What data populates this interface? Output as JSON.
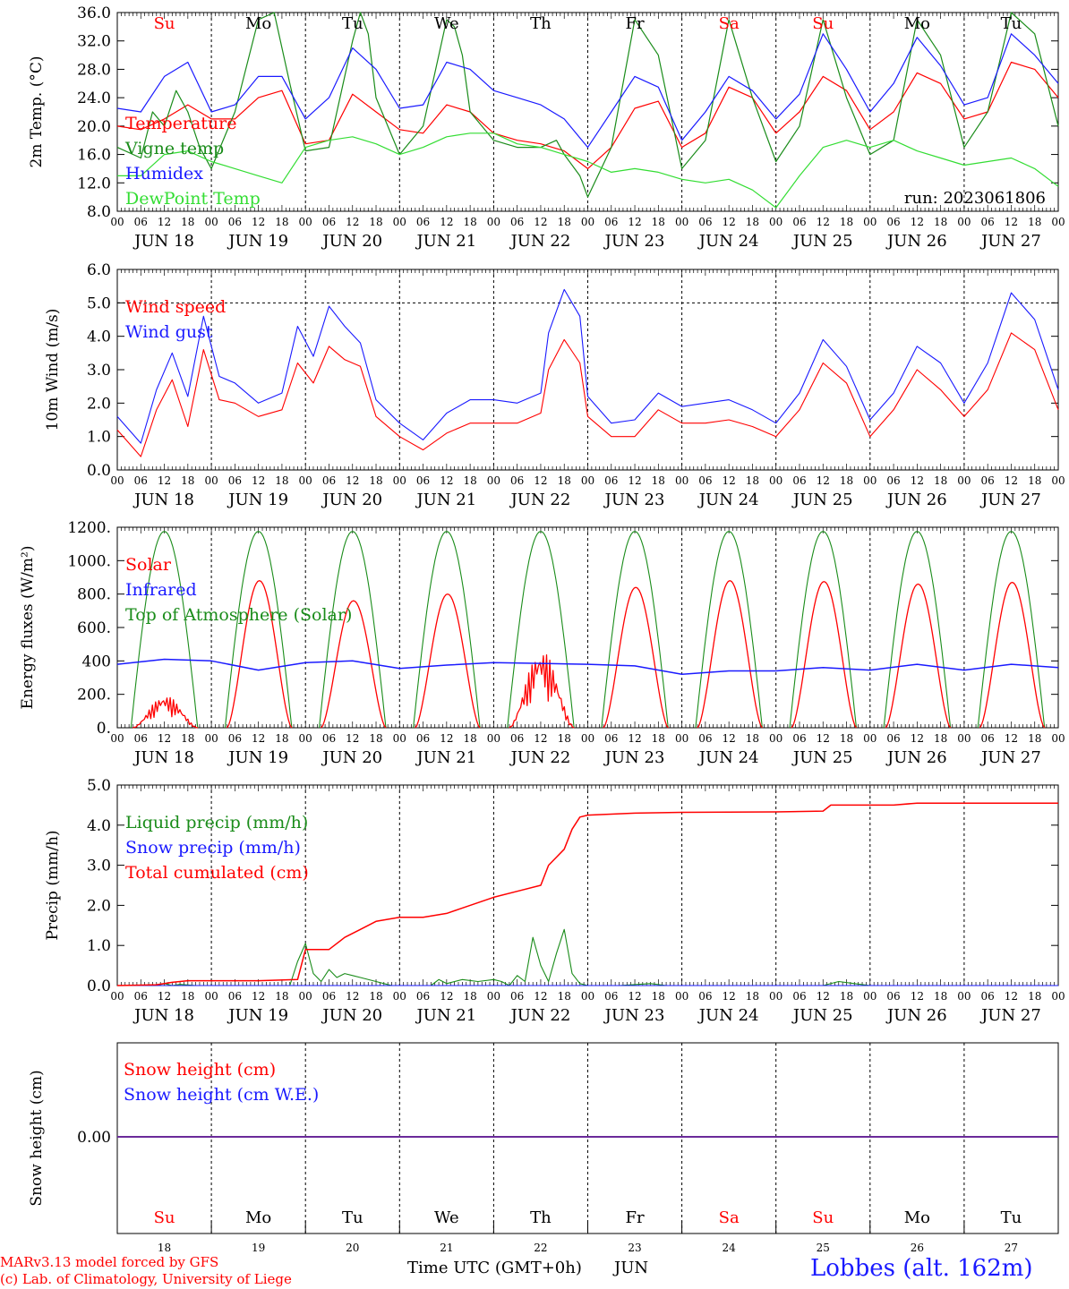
{
  "meta": {
    "run": "run: 2023061806",
    "footer_model": "MARv3.13 model forced by GFS",
    "footer_lab": "(c) Lab. of Climatology, University of Liege",
    "footer_xaxis": "Time UTC (GMT+0h)",
    "footer_month": "JUN",
    "station": "Lobbes (alt. 162m)"
  },
  "colors": {
    "red": "#ff0000",
    "green": "#1a8c1a",
    "blue": "#1a1aff",
    "lightgreen": "#33dd33",
    "purple": "#6a2a9a",
    "weekend": "#ff0000",
    "weekday": "#000000"
  },
  "days": [
    {
      "date": "JUN 18",
      "num": "18",
      "abbr": "Su",
      "weekend": true
    },
    {
      "date": "JUN 19",
      "num": "19",
      "abbr": "Mo",
      "weekend": false
    },
    {
      "date": "JUN 20",
      "num": "20",
      "abbr": "Tu",
      "weekend": false
    },
    {
      "date": "JUN 21",
      "num": "21",
      "abbr": "We",
      "weekend": false
    },
    {
      "date": "JUN 22",
      "num": "22",
      "abbr": "Th",
      "weekend": false
    },
    {
      "date": "JUN 23",
      "num": "23",
      "abbr": "Fr",
      "weekend": false
    },
    {
      "date": "JUN 24",
      "num": "24",
      "abbr": "Sa",
      "weekend": true
    },
    {
      "date": "JUN 25",
      "num": "25",
      "abbr": "Su",
      "weekend": true
    },
    {
      "date": "JUN 26",
      "num": "26",
      "abbr": "Mo",
      "weekend": false
    },
    {
      "date": "JUN 27",
      "num": "27",
      "abbr": "Tu",
      "weekend": false
    }
  ],
  "hour_ticks": [
    "00",
    "06",
    "12",
    "18"
  ],
  "hour_end": "00",
  "chart_data": [
    {
      "type": "line",
      "id": "temp",
      "ylabel": "2m Temp. (°C)",
      "ylim": [
        8,
        36
      ],
      "yticks": [
        "8.0",
        "12.0",
        "16.0",
        "20.0",
        "24.0",
        "28.0",
        "32.0",
        "36.0"
      ],
      "x_unit": "hours since JUN 18 00 UTC",
      "series": [
        {
          "name": "Temperature",
          "color": "red",
          "x": [
            0,
            6,
            12,
            18,
            24,
            30,
            36,
            42,
            48,
            54,
            60,
            66,
            72,
            78,
            84,
            90,
            96,
            102,
            108,
            114,
            120,
            126,
            132,
            138,
            144,
            150,
            156,
            162,
            168,
            174,
            180,
            186,
            192,
            198,
            204,
            210,
            216,
            222,
            228,
            234,
            240
          ],
          "y": [
            20,
            19.5,
            21,
            23,
            21,
            21,
            24,
            25,
            17.5,
            18,
            24.5,
            22,
            19.5,
            19,
            23,
            22,
            19,
            18,
            17.5,
            16.5,
            14,
            17,
            22.5,
            23.5,
            17,
            19,
            25.5,
            24,
            19,
            22,
            27,
            25,
            19.5,
            22,
            27.5,
            26,
            21,
            22,
            29,
            28,
            24
          ]
        },
        {
          "name": "Vigne temp",
          "color": "green",
          "x": [
            0,
            6,
            9,
            12,
            15,
            18,
            21,
            24,
            30,
            36,
            40,
            44,
            48,
            54,
            60,
            62,
            64,
            66,
            72,
            78,
            84,
            86,
            88,
            90,
            96,
            102,
            108,
            112,
            114,
            118,
            120,
            126,
            132,
            138,
            144,
            150,
            156,
            162,
            168,
            174,
            180,
            186,
            192,
            198,
            204,
            210,
            216,
            222,
            228,
            234,
            240
          ],
          "y": [
            17,
            15.5,
            22,
            20,
            25,
            22,
            17,
            14,
            22,
            35,
            36,
            26,
            16.5,
            17,
            32,
            36,
            33,
            24,
            16,
            20,
            35,
            34,
            30,
            22,
            18,
            17,
            17,
            18,
            16,
            13,
            10,
            17,
            35,
            30,
            14,
            18,
            35,
            24,
            15,
            20,
            35,
            24,
            16,
            18,
            35,
            30,
            17,
            22,
            36,
            33,
            20
          ]
        },
        {
          "name": "Humidex",
          "color": "blue",
          "x": [
            0,
            6,
            12,
            18,
            24,
            30,
            36,
            42,
            48,
            54,
            60,
            66,
            72,
            78,
            84,
            90,
            96,
            102,
            108,
            114,
            120,
            126,
            132,
            138,
            144,
            150,
            156,
            162,
            168,
            174,
            180,
            186,
            192,
            198,
            204,
            210,
            216,
            222,
            228,
            234,
            240
          ],
          "y": [
            22.5,
            22,
            27,
            29,
            22,
            23,
            27,
            27,
            21,
            24,
            31,
            28,
            22.5,
            23,
            29,
            28,
            25,
            24,
            23,
            21,
            17,
            22,
            27,
            25.5,
            18,
            22,
            27,
            25,
            21,
            24.5,
            33,
            28,
            22,
            26,
            32.5,
            28.5,
            23,
            24,
            33,
            30,
            26
          ]
        },
        {
          "name": "DewPoint Temp",
          "color": "lightgreen",
          "x": [
            0,
            6,
            12,
            18,
            24,
            30,
            36,
            42,
            48,
            54,
            60,
            66,
            72,
            78,
            84,
            90,
            96,
            102,
            108,
            114,
            120,
            126,
            132,
            138,
            144,
            150,
            156,
            162,
            168,
            174,
            180,
            186,
            192,
            198,
            204,
            210,
            216,
            222,
            228,
            234,
            240
          ],
          "y": [
            13,
            13,
            16,
            16.5,
            15,
            14,
            13,
            12,
            17,
            18,
            18.5,
            17.5,
            16,
            17,
            18.5,
            19,
            19,
            17.5,
            17,
            16,
            15,
            13.5,
            14,
            13.5,
            12.5,
            12,
            12.5,
            11,
            8.5,
            13,
            17,
            18,
            17,
            18,
            16.5,
            15.5,
            14.5,
            15,
            15.5,
            14,
            11.5
          ]
        }
      ]
    },
    {
      "type": "line",
      "id": "wind",
      "ylabel": "10m Wind (m/s)",
      "ylim": [
        0,
        6
      ],
      "yticks": [
        "0.0",
        "1.0",
        "2.0",
        "3.0",
        "4.0",
        "5.0",
        "6.0"
      ],
      "x_unit": "hours since JUN 18 00 UTC",
      "reference_line": 5.0,
      "series": [
        {
          "name": "Wind speed",
          "color": "red",
          "x": [
            0,
            6,
            10,
            14,
            18,
            22,
            26,
            30,
            36,
            42,
            46,
            50,
            54,
            58,
            62,
            66,
            72,
            78,
            84,
            90,
            96,
            102,
            108,
            110,
            114,
            118,
            120,
            126,
            132,
            138,
            144,
            150,
            156,
            162,
            168,
            174,
            180,
            186,
            192,
            198,
            204,
            210,
            216,
            222,
            228,
            234,
            240
          ],
          "y": [
            1.2,
            0.4,
            1.8,
            2.7,
            1.3,
            3.6,
            2.1,
            2.0,
            1.6,
            1.8,
            3.2,
            2.6,
            3.7,
            3.3,
            3.1,
            1.6,
            1.0,
            0.6,
            1.1,
            1.4,
            1.4,
            1.4,
            1.7,
            3.0,
            3.9,
            3.2,
            1.6,
            1.0,
            1.0,
            1.8,
            1.4,
            1.4,
            1.5,
            1.3,
            1.0,
            1.8,
            3.2,
            2.6,
            1.0,
            1.8,
            3.0,
            2.4,
            1.6,
            2.4,
            4.1,
            3.6,
            1.8
          ]
        },
        {
          "name": "Wind gust",
          "color": "blue",
          "x": [
            0,
            6,
            10,
            14,
            18,
            22,
            26,
            30,
            36,
            42,
            46,
            50,
            54,
            58,
            62,
            66,
            72,
            78,
            84,
            90,
            96,
            102,
            108,
            110,
            114,
            118,
            120,
            126,
            132,
            138,
            144,
            150,
            156,
            162,
            168,
            174,
            180,
            186,
            192,
            198,
            204,
            210,
            216,
            222,
            228,
            234,
            240
          ],
          "y": [
            1.6,
            0.8,
            2.4,
            3.5,
            2.2,
            4.6,
            2.8,
            2.6,
            2.0,
            2.3,
            4.3,
            3.4,
            4.9,
            4.3,
            3.8,
            2.1,
            1.4,
            0.9,
            1.7,
            2.1,
            2.1,
            2.0,
            2.3,
            4.1,
            5.4,
            4.6,
            2.2,
            1.4,
            1.5,
            2.3,
            1.9,
            2.0,
            2.1,
            1.8,
            1.4,
            2.3,
            3.9,
            3.1,
            1.5,
            2.3,
            3.7,
            3.2,
            2.0,
            3.2,
            5.3,
            4.5,
            2.4
          ]
        }
      ]
    },
    {
      "type": "line",
      "id": "flux",
      "ylabel": "Energy fluxes (W/m²)",
      "ylim": [
        0,
        1200
      ],
      "yticks": [
        "0.",
        "200.",
        "400",
        "600.",
        "800.",
        "1000.",
        "1200."
      ],
      "x_unit": "hours since JUN 18 00 UTC",
      "series": [
        {
          "name": "Solar",
          "color": "red",
          "daily_peak_value": [
            190,
            880,
            760,
            800,
            460,
            840,
            880,
            875,
            860,
            870
          ],
          "daily_peak_hour": 12,
          "daylight_hours": [
            4,
            20.5
          ]
        },
        {
          "name": "Infrared",
          "color": "blue",
          "x": [
            0,
            12,
            24,
            36,
            48,
            60,
            72,
            84,
            96,
            108,
            120,
            132,
            144,
            156,
            168,
            180,
            192,
            204,
            216,
            228,
            240
          ],
          "y": [
            380,
            410,
            400,
            345,
            390,
            400,
            355,
            375,
            390,
            385,
            380,
            370,
            320,
            340,
            340,
            360,
            345,
            380,
            345,
            380,
            360
          ]
        },
        {
          "name": "Top of Atmosphere (Solar)",
          "color": "green",
          "daily_peak_value": 1175,
          "daily_peak_hour": 12,
          "daylight_hours": [
            3.5,
            20.5
          ]
        }
      ]
    },
    {
      "type": "line",
      "id": "precip",
      "ylabel": "Precip (mm/h)",
      "ylim": [
        0,
        5
      ],
      "yticks": [
        "0.0",
        "1.0",
        "2.0",
        "3.0",
        "4.0",
        "5.0"
      ],
      "x_unit": "hours since JUN 18 00 UTC",
      "series": [
        {
          "name": "Liquid precip (mm/h)",
          "color": "green",
          "x": [
            0,
            10,
            12,
            14,
            16,
            20,
            24,
            44,
            46,
            48,
            50,
            52,
            54,
            56,
            58,
            60,
            62,
            66,
            68,
            70,
            72,
            80,
            82,
            84,
            88,
            92,
            96,
            98,
            100,
            102,
            104,
            106,
            108,
            110,
            112,
            114,
            116,
            118,
            120,
            124,
            128,
            136,
            140,
            160,
            180,
            184,
            188,
            192,
            210,
            216,
            240
          ],
          "y": [
            0,
            0,
            0.05,
            0,
            0.03,
            0,
            0,
            0,
            0.6,
            1.05,
            0.3,
            0.1,
            0.4,
            0.2,
            0.3,
            0.25,
            0.2,
            0.1,
            0.05,
            0,
            0,
            0,
            0.15,
            0.05,
            0.15,
            0.1,
            0.15,
            0.1,
            0,
            0.25,
            0.1,
            1.2,
            0.5,
            0.1,
            0.8,
            1.4,
            0.3,
            0.05,
            0,
            0,
            0,
            0.05,
            0,
            0,
            0,
            0.1,
            0.05,
            0,
            0,
            0,
            0
          ]
        },
        {
          "name": "Snow precip (mm/h)",
          "color": "blue",
          "x": [
            0,
            240
          ],
          "y": [
            0,
            0
          ]
        },
        {
          "name": "Total cumulated (cm)",
          "color": "red",
          "x": [
            0,
            10,
            14,
            18,
            24,
            36,
            46,
            48,
            50,
            54,
            58,
            62,
            66,
            72,
            74,
            78,
            84,
            90,
            96,
            102,
            108,
            110,
            112,
            114,
            116,
            118,
            120,
            132,
            144,
            168,
            180,
            182,
            186,
            198,
            204,
            240
          ],
          "y": [
            0,
            0.02,
            0.08,
            0.12,
            0.12,
            0.12,
            0.15,
            0.9,
            0.9,
            0.9,
            1.2,
            1.4,
            1.6,
            1.7,
            1.7,
            1.7,
            1.8,
            2.0,
            2.2,
            2.35,
            2.5,
            3.0,
            3.2,
            3.4,
            3.9,
            4.2,
            4.25,
            4.3,
            4.32,
            4.33,
            4.35,
            4.5,
            4.5,
            4.5,
            4.55,
            4.55
          ]
        }
      ]
    },
    {
      "type": "line",
      "id": "snow",
      "ylabel": "Snow height (cm)",
      "yticks": [
        "0.00"
      ],
      "series": [
        {
          "name": "Snow height (cm)",
          "color": "red",
          "value": 0.0
        },
        {
          "name": "Snow height (cm W.E.)",
          "color": "blue",
          "value": 0.0
        }
      ]
    }
  ]
}
